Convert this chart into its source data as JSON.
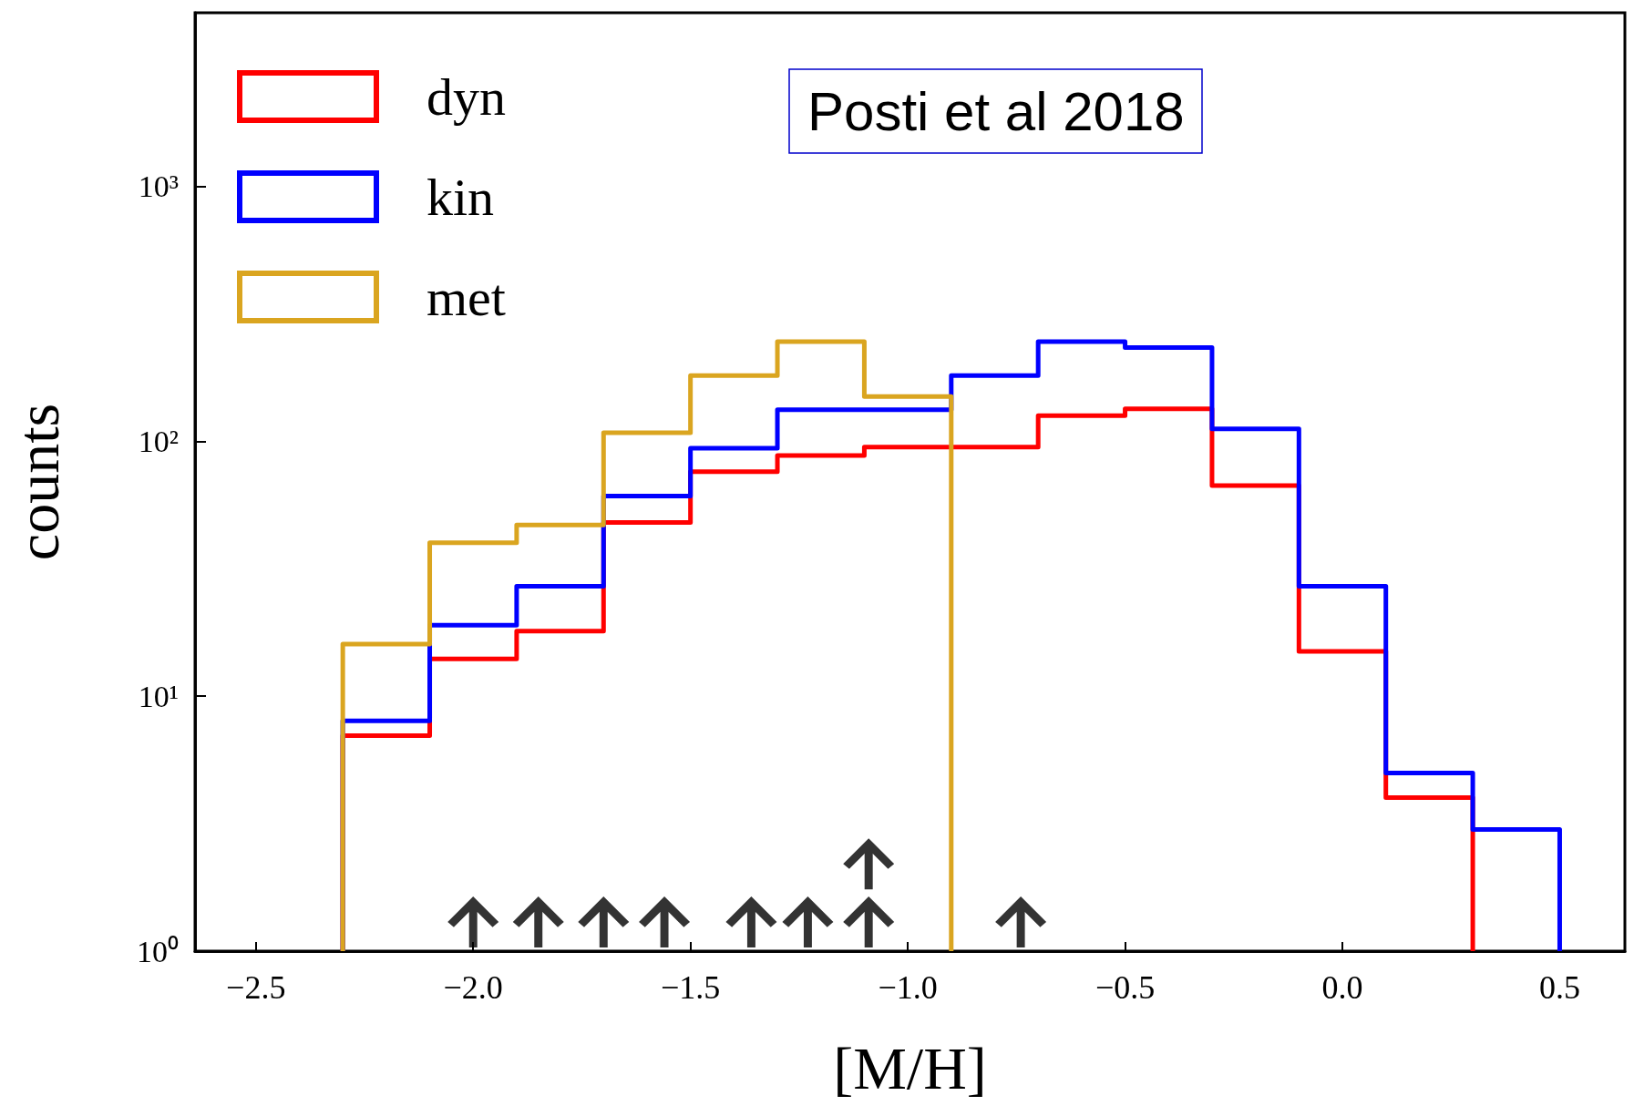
{
  "chart_data": {
    "type": "histogram",
    "xlabel": "[M/H]",
    "ylabel": "counts",
    "annotations": [
      "Posti et al 2018"
    ],
    "bins": [
      -2.3,
      -2.1,
      -1.9,
      -1.7,
      -1.5,
      -1.3,
      -1.1,
      -0.9,
      -0.7,
      -0.5,
      -0.3,
      -0.1,
      0.1,
      0.3,
      0.5
    ],
    "series": [
      {
        "name": "dyn",
        "color": "#ff0000",
        "bins": [
          -2.3,
          -2.1,
          -1.9,
          -1.7,
          -1.5,
          -1.3,
          -1.1,
          -0.9,
          -0.7,
          -0.5,
          -0.3,
          -0.1,
          0.1,
          0.3
        ],
        "values": [
          7,
          14,
          18,
          48,
          76,
          88,
          95,
          95,
          126,
          134,
          67,
          15,
          4
        ]
      },
      {
        "name": "kin",
        "color": "#0000ff",
        "values": [
          8,
          19,
          27,
          61,
          94,
          133,
          133,
          181,
          246,
          233,
          112,
          27,
          5,
          3
        ]
      },
      {
        "name": "met",
        "color": "#daa520",
        "bins": [
          -2.3,
          -2.1,
          -1.9,
          -1.7,
          -1.5,
          -1.3,
          -1.1,
          -0.9
        ],
        "values": [
          16,
          40,
          47,
          108,
          181,
          246,
          150
        ]
      },
      {
        "type": "scatter",
        "color": "#000000",
        "x": [
          -2.0,
          -1.85,
          -1.7,
          -1.56,
          -1.36,
          -1.23,
          -1.09,
          -1.09,
          -0.74
        ],
        "values": [
          1.3,
          1.3,
          1.3,
          1.3,
          1.3,
          1.3,
          1.3,
          2.2,
          1.3
        ]
      }
    ],
    "xlim": [
      -2.64,
      0.65
    ],
    "xticks": [
      -2.5,
      {
        "value": -2.0,
        "label": "−2.0"
      },
      -1.5,
      {
        "value": -1.0,
        "label": "−1.0"
      },
      -0.5,
      {
        "value": 0.0,
        "label": "0.0"
      },
      0.5
    ],
    "ylim": [
      1,
      4800
    ],
    "yticks": [
      {
        "value": 1,
        "label": "10⁰"
      },
      {
        "value": 10,
        "label": "10¹"
      },
      {
        "value": 100,
        "label": "10²"
      },
      {
        "value": 1000,
        "label": "10³"
      }
    ],
    "log": "y",
    "grid": false,
    "legend": "top left"
  }
}
